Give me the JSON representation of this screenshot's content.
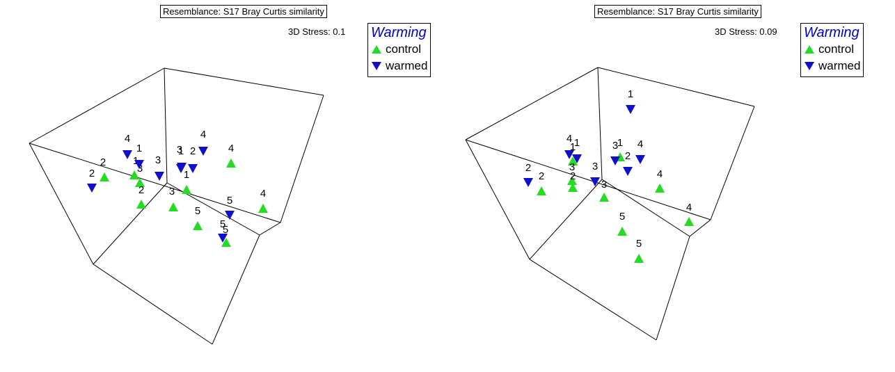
{
  "colors": {
    "control": "#22dd22",
    "warmed": "#1010cc",
    "legend_title": "#0000cc"
  },
  "chart_data": [
    {
      "type": "scatter",
      "title": "Resemblance: S17 Bray Curtis similarity",
      "stress": "3D Stress: 0.1",
      "legend": {
        "title": "Warming",
        "placement": "top-right",
        "entries": [
          {
            "label": "control",
            "marker": "triangle-up",
            "color": "#22dd22"
          },
          {
            "label": "warmed",
            "marker": "triangle-down",
            "color": "#1010cc"
          }
        ]
      },
      "series": [
        {
          "name": "control",
          "marker": "triangle-up",
          "points": [
            {
              "label": "2"
            },
            {
              "label": "1"
            },
            {
              "label": "3"
            },
            {
              "label": "2"
            },
            {
              "label": "3"
            },
            {
              "label": "1"
            },
            {
              "label": "5"
            },
            {
              "label": "4"
            },
            {
              "label": "4"
            },
            {
              "label": "5"
            }
          ]
        },
        {
          "name": "warmed",
          "marker": "triangle-down",
          "points": [
            {
              "label": "2"
            },
            {
              "label": "4"
            },
            {
              "label": "1"
            },
            {
              "label": "3"
            },
            {
              "label": "1"
            },
            {
              "label": "3"
            },
            {
              "label": "2"
            },
            {
              "label": "4"
            },
            {
              "label": "5"
            },
            {
              "label": "5"
            }
          ]
        }
      ]
    },
    {
      "type": "scatter",
      "title": "Resemblance: S17 Bray Curtis similarity",
      "stress": "3D Stress: 0.09",
      "legend": {
        "title": "Warming",
        "placement": "top-right",
        "entries": [
          {
            "label": "control",
            "marker": "triangle-up",
            "color": "#22dd22"
          },
          {
            "label": "warmed",
            "marker": "triangle-down",
            "color": "#1010cc"
          }
        ]
      },
      "series": [
        {
          "name": "control",
          "marker": "triangle-up",
          "points": [
            {
              "label": "2"
            },
            {
              "label": "1"
            },
            {
              "label": "3"
            },
            {
              "label": "2"
            },
            {
              "label": "3"
            },
            {
              "label": "1"
            },
            {
              "label": "4"
            },
            {
              "label": "4"
            },
            {
              "label": "5"
            },
            {
              "label": "5"
            }
          ]
        },
        {
          "name": "warmed",
          "marker": "triangle-down",
          "points": [
            {
              "label": "2"
            },
            {
              "label": "4"
            },
            {
              "label": "1"
            },
            {
              "label": "3"
            },
            {
              "label": "3"
            },
            {
              "label": "2"
            },
            {
              "label": "4"
            },
            {
              "label": "1"
            }
          ]
        }
      ]
    }
  ]
}
